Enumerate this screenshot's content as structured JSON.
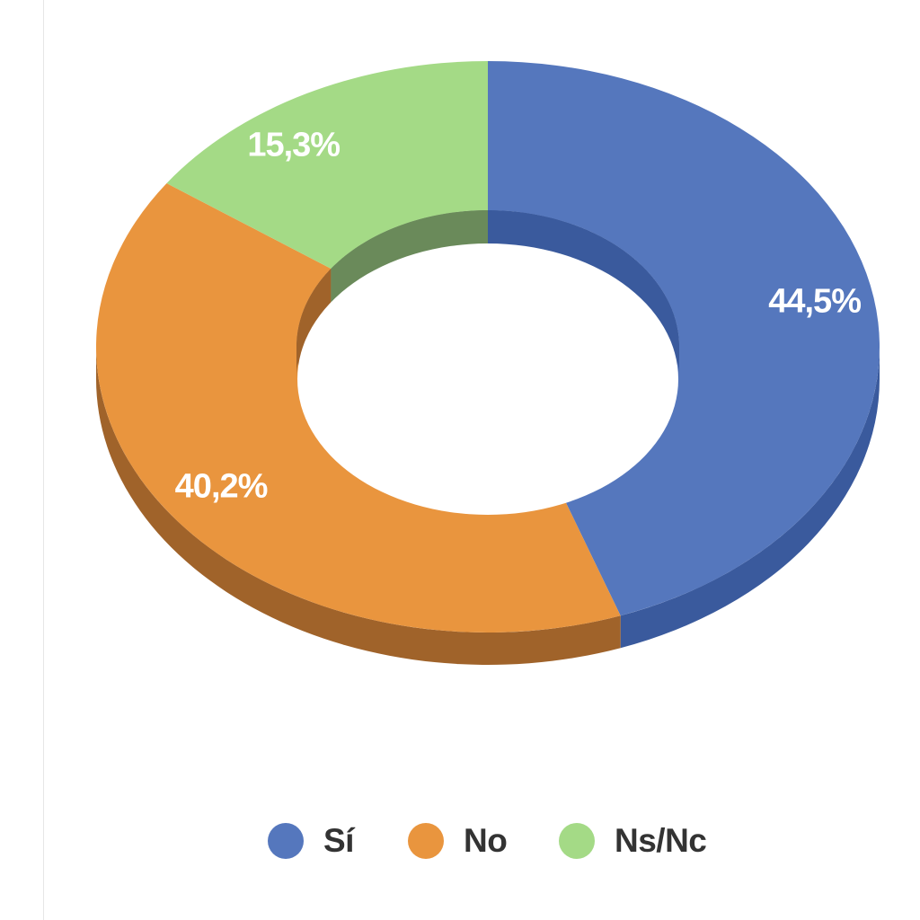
{
  "chart_data": {
    "type": "pie",
    "variant": "3d-donut",
    "title": "",
    "categories": [
      "Sí",
      "No",
      "Ns/Nc"
    ],
    "values": [
      44.5,
      40.2,
      15.3
    ],
    "value_labels": [
      "44,5%",
      "40,2%",
      "15,3%"
    ],
    "colors": {
      "top": [
        "#5577bd",
        "#e9953e",
        "#a4da86"
      ],
      "side": [
        "#3a5a9d",
        "#a0632a",
        "#6a8a5a"
      ]
    },
    "start_angle": "12 o'clock",
    "direction": "clockwise",
    "legend": {
      "position": "bottom",
      "entries": [
        "Sí",
        "No",
        "Ns/Nc"
      ]
    }
  }
}
